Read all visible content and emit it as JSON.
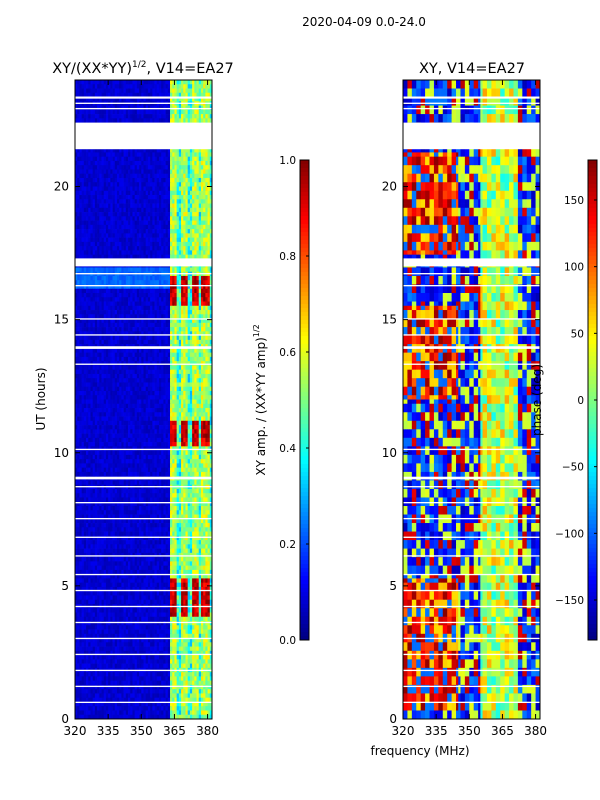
{
  "suptitle": "2020-04-09 0.0-24.0",
  "shared_xlabel": "frequency (MHz)",
  "chart_data": [
    {
      "type": "heatmap",
      "title": "XY/(XX*YY)",
      "title_sup": "1/2",
      "title_suffix": ", V14=EA27",
      "xlabel": "",
      "ylabel": "UT (hours)",
      "xlim": [
        320,
        382
      ],
      "ylim": [
        0,
        24
      ],
      "xticks": [
        320,
        335,
        350,
        365,
        380
      ],
      "yticks": [
        0,
        5,
        10,
        15,
        20
      ],
      "colorbar": {
        "label": "XY amp. / (XX*YY amp)",
        "label_sup": "1/2",
        "range": [
          0.0,
          1.0
        ],
        "ticks": [
          "0.0",
          "0.2",
          "0.4",
          "0.6",
          "0.8",
          "1.0"
        ],
        "colormap": "jet"
      },
      "data_gaps_hours": [
        [
          21.4,
          22.4
        ],
        [
          23.3,
          23.38
        ],
        [
          23.1,
          23.15
        ],
        [
          22.9,
          22.95
        ],
        [
          17.0,
          17.3
        ],
        [
          16.7,
          16.75
        ],
        [
          16.25,
          16.3
        ],
        [
          15.0,
          15.05
        ],
        [
          14.4,
          14.45
        ],
        [
          13.9,
          14.0
        ],
        [
          13.3,
          13.35
        ],
        [
          10.1,
          10.15
        ],
        [
          9.0,
          9.1
        ],
        [
          8.7,
          8.75
        ],
        [
          8.1,
          8.15
        ],
        [
          7.5,
          7.55
        ],
        [
          6.8,
          6.85
        ],
        [
          6.1,
          6.15
        ],
        [
          5.4,
          5.45
        ],
        [
          4.8,
          4.85
        ],
        [
          4.2,
          4.25
        ],
        [
          3.6,
          3.65
        ],
        [
          3.0,
          3.05
        ],
        [
          2.4,
          2.45
        ],
        [
          1.8,
          1.85
        ],
        [
          1.2,
          1.25
        ],
        [
          0.6,
          0.65
        ]
      ],
      "features": {
        "background_level": 0.05,
        "rfi_band_mhz": [
          363,
          382
        ],
        "rfi_band_level": 0.3,
        "strong_channels_mhz": [
          364.5,
          369.5,
          374.5,
          379.0
        ],
        "strong_hours": [
          [
            15.6,
            16.6
          ],
          [
            10.3,
            11.2
          ],
          [
            3.8,
            5.3
          ]
        ],
        "strong_level": 0.85
      }
    },
    {
      "type": "heatmap",
      "title": "XY, V14=EA27",
      "xlabel": "frequency (MHz)",
      "ylabel": "",
      "xlim": [
        320,
        382
      ],
      "ylim": [
        0,
        24
      ],
      "xticks": [
        320,
        335,
        350,
        365,
        380
      ],
      "yticks": [
        0,
        5,
        10,
        15,
        20
      ],
      "colorbar": {
        "label": "phase (deg)",
        "range": [
          -180,
          180
        ],
        "ticks": [
          "−150",
          "−100",
          "−50",
          "0",
          "50",
          "100",
          "150"
        ],
        "tick_values": [
          -150,
          -100,
          -50,
          0,
          50,
          100,
          150
        ],
        "colormap": "jet"
      },
      "data_gaps_hours": [
        [
          21.4,
          22.4
        ],
        [
          23.3,
          23.38
        ],
        [
          23.1,
          23.15
        ],
        [
          22.9,
          22.95
        ],
        [
          17.0,
          17.3
        ],
        [
          16.7,
          16.75
        ],
        [
          16.25,
          16.3
        ],
        [
          15.0,
          15.05
        ],
        [
          14.4,
          14.45
        ],
        [
          13.9,
          14.0
        ],
        [
          13.3,
          13.35
        ],
        [
          10.1,
          10.15
        ],
        [
          9.0,
          9.1
        ],
        [
          8.7,
          8.75
        ],
        [
          8.1,
          8.15
        ],
        [
          7.5,
          7.55
        ],
        [
          6.8,
          6.85
        ],
        [
          6.1,
          6.15
        ],
        [
          5.4,
          5.45
        ],
        [
          4.8,
          4.85
        ],
        [
          4.2,
          4.25
        ],
        [
          3.6,
          3.65
        ],
        [
          3.0,
          3.05
        ],
        [
          2.4,
          2.45
        ],
        [
          1.8,
          1.85
        ],
        [
          1.2,
          1.25
        ],
        [
          0.6,
          0.65
        ]
      ],
      "features": {
        "phase_hot_regions_mhz": [
          [
            320,
            345
          ]
        ],
        "phase_hot_hours": [
          [
            17.5,
            21.3
          ],
          [
            12.0,
            15.5
          ],
          [
            0.3,
            5.3
          ]
        ],
        "phase_band_mhz": [
          355,
          372
        ],
        "phase_band_level_deg": 20
      }
    }
  ]
}
